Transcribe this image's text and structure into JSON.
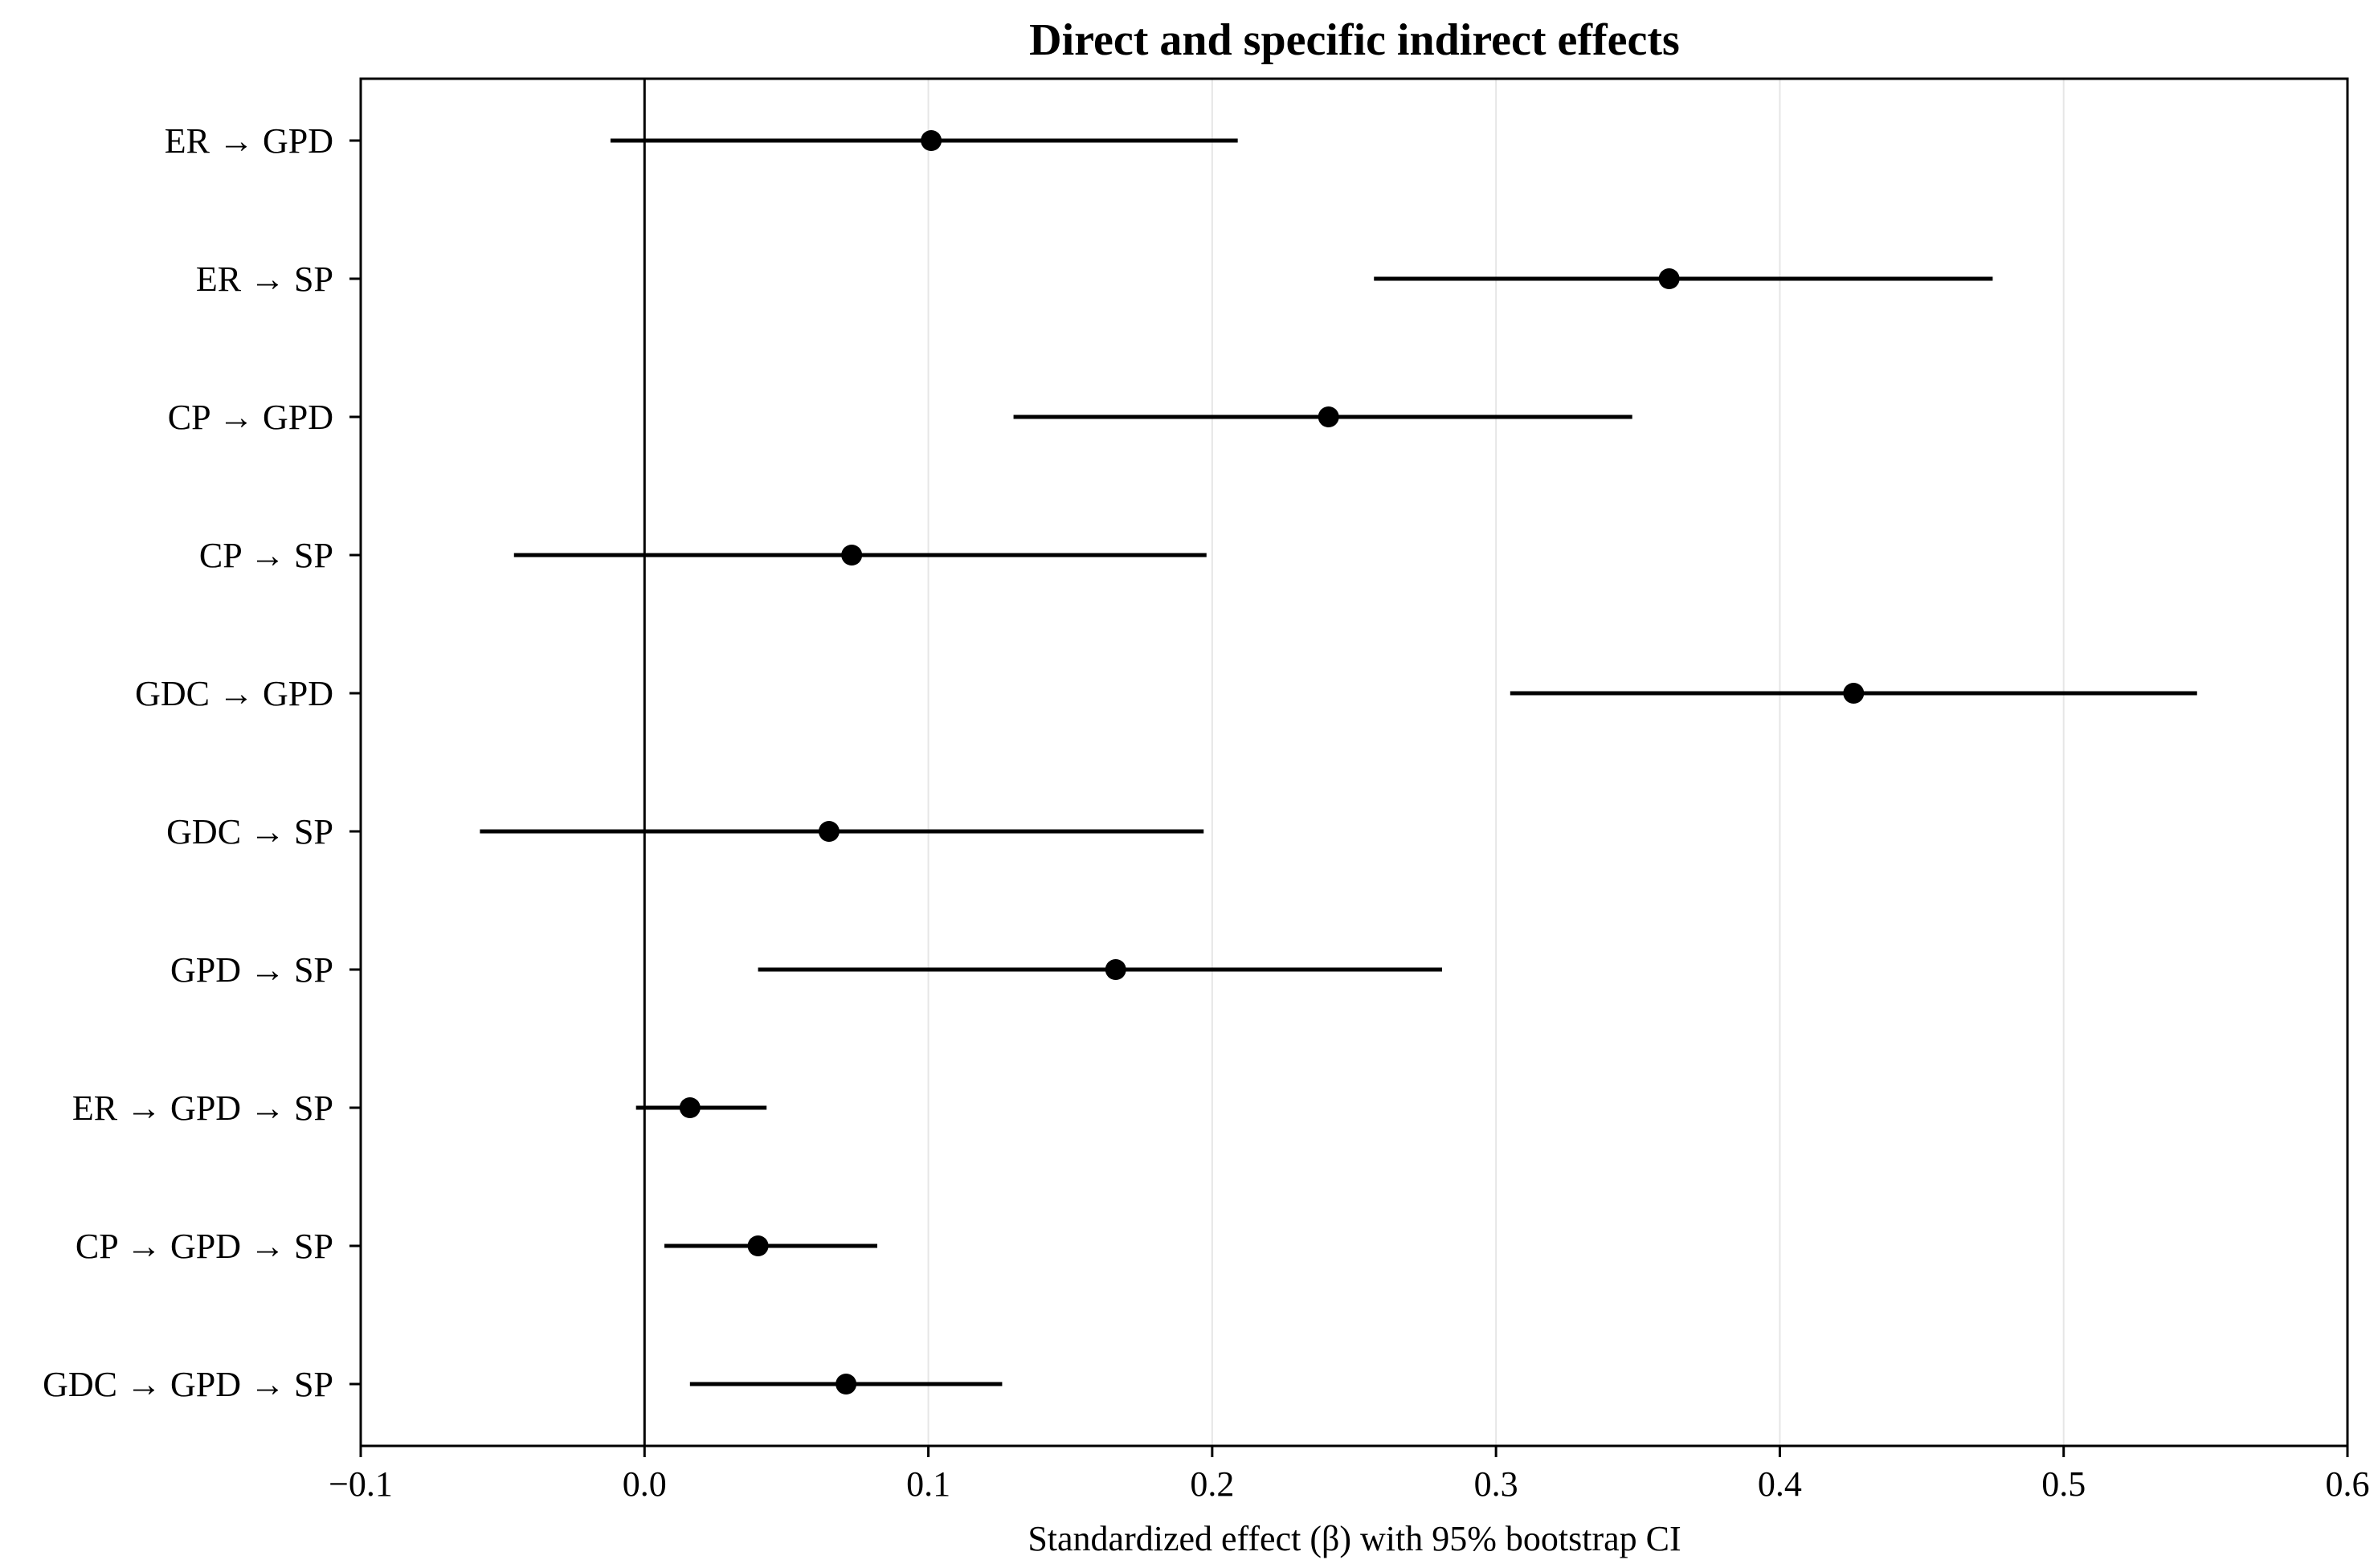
{
  "chart_data": {
    "type": "forest",
    "title": "Direct and specific indirect effects",
    "xlabel": "Standardized effect (β) with 95% bootstrap CI",
    "ylabel": "",
    "xlim": [
      -0.1,
      0.6
    ],
    "xticks": [
      -0.1,
      0.0,
      0.1,
      0.2,
      0.3,
      0.4,
      0.5,
      0.6
    ],
    "xtick_labels": [
      "−0.1",
      "0.0",
      "0.1",
      "0.2",
      "0.3",
      "0.4",
      "0.5",
      "0.6"
    ],
    "reference_line": 0.0,
    "grid": "vertical",
    "colors": {
      "marker": "#000000",
      "grid": "#e6e6e6",
      "axes": "#000000"
    },
    "categories": [
      "ER → GPD",
      "ER → SP",
      "CP → GPD",
      "CP → SP",
      "GDC → GPD",
      "GDC → SP",
      "GPD → SP",
      "ER → GPD → SP",
      "CP → GPD → SP",
      "GDC → GPD → SP"
    ],
    "estimates": [
      0.101,
      0.361,
      0.241,
      0.073,
      0.426,
      0.065,
      0.166,
      0.016,
      0.04,
      0.071
    ],
    "ci_lower": [
      -0.012,
      0.257,
      0.13,
      -0.046,
      0.305,
      -0.058,
      0.04,
      -0.003,
      0.007,
      0.016
    ],
    "ci_upper": [
      0.209,
      0.475,
      0.348,
      0.198,
      0.547,
      0.197,
      0.281,
      0.043,
      0.082,
      0.126
    ]
  }
}
